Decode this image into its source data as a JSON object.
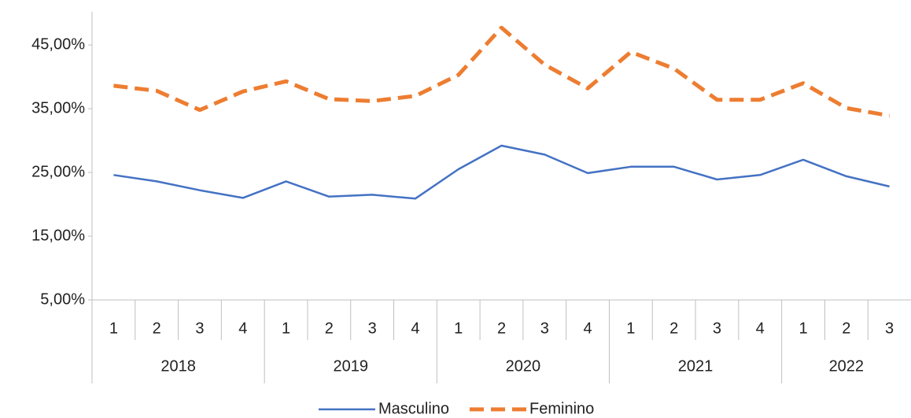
{
  "chart_data": {
    "type": "line",
    "category_groups": [
      {
        "name": "2018",
        "categories": [
          "1",
          "2",
          "3",
          "4"
        ]
      },
      {
        "name": "2019",
        "categories": [
          "1",
          "2",
          "3",
          "4"
        ]
      },
      {
        "name": "2020",
        "categories": [
          "1",
          "2",
          "3",
          "4"
        ]
      },
      {
        "name": "2021",
        "categories": [
          "1",
          "2",
          "3",
          "4"
        ]
      },
      {
        "name": "2022",
        "categories": [
          "1",
          "2",
          "3"
        ]
      }
    ],
    "series": [
      {
        "name": "Masculino",
        "color": "#4472c4",
        "dash": false,
        "values": [
          24.6,
          23.6,
          22.2,
          21.0,
          23.6,
          21.2,
          21.5,
          20.9,
          25.5,
          29.2,
          27.8,
          24.9,
          25.9,
          25.9,
          23.9,
          24.6,
          27.0,
          24.4,
          22.8
        ]
      },
      {
        "name": "Feminino",
        "color": "#ed7d31",
        "dash": true,
        "values": [
          38.6,
          37.8,
          34.8,
          37.7,
          39.3,
          36.5,
          36.2,
          37.0,
          40.3,
          47.7,
          41.9,
          38.2,
          43.9,
          41.3,
          36.4,
          36.4,
          39.0,
          35.1,
          33.9
        ]
      }
    ],
    "ylim": [
      5,
      50.2
    ],
    "yticks": [
      {
        "value": 5,
        "label": "5,00%"
      },
      {
        "value": 15,
        "label": "15,00%"
      },
      {
        "value": 25,
        "label": "25,00%"
      },
      {
        "value": 35,
        "label": "35,00%"
      },
      {
        "value": 45,
        "label": "45,00%"
      }
    ],
    "grid": false,
    "legend": "bottom"
  }
}
